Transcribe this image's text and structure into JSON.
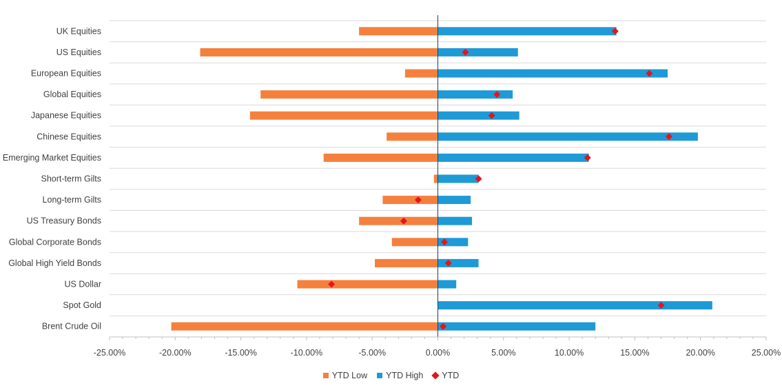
{
  "colors": {
    "low": "#F5803E",
    "high": "#1E9AD6",
    "ytd": "#E8141B",
    "grid": "#D9D9D9",
    "axis": "#1F3A6E"
  },
  "chart_data": {
    "type": "bar",
    "orientation": "horizontal",
    "categories": [
      "UK Equities",
      "US Equities",
      "European Equities",
      "Global Equities",
      "Japanese Equities",
      "Chinese Equities",
      "Emerging Market Equities",
      "Short-term Gilts",
      "Long-term Gilts",
      "US Treasury Bonds",
      "Global Corporate Bonds",
      "Global High Yield Bonds",
      "US Dollar",
      "Spot Gold",
      "Brent Crude Oil"
    ],
    "series": [
      {
        "name": "YTD Low",
        "type": "bar",
        "values": [
          -6.0,
          -18.1,
          -2.5,
          -13.5,
          -14.3,
          -3.9,
          -8.7,
          -0.3,
          -4.2,
          -6.0,
          -3.5,
          -4.8,
          -10.7,
          0.0,
          -20.3
        ]
      },
      {
        "name": "YTD High",
        "type": "bar",
        "values": [
          13.6,
          6.1,
          17.5,
          5.7,
          6.2,
          19.8,
          11.5,
          3.1,
          2.5,
          2.6,
          2.3,
          3.1,
          1.4,
          20.9,
          12.0
        ]
      },
      {
        "name": "YTD",
        "type": "scatter",
        "marker": "diamond",
        "values": [
          13.5,
          2.1,
          16.1,
          4.5,
          4.1,
          17.6,
          11.4,
          3.1,
          -1.5,
          -2.6,
          0.5,
          0.8,
          -8.1,
          17.0,
          0.4
        ]
      }
    ],
    "xlim": [
      -25,
      25
    ],
    "xticks": [
      "-25.00%",
      "-20.00%",
      "-15.00%",
      "-10.00%",
      "-5.00%",
      "0.00%",
      "5.00%",
      "10.00%",
      "15.00%",
      "20.00%",
      "25.00%"
    ],
    "tick_values": [
      -25,
      -20,
      -15,
      -10,
      -5,
      0,
      5,
      10,
      15,
      20,
      25
    ],
    "grid": true,
    "legend_position": "bottom"
  }
}
